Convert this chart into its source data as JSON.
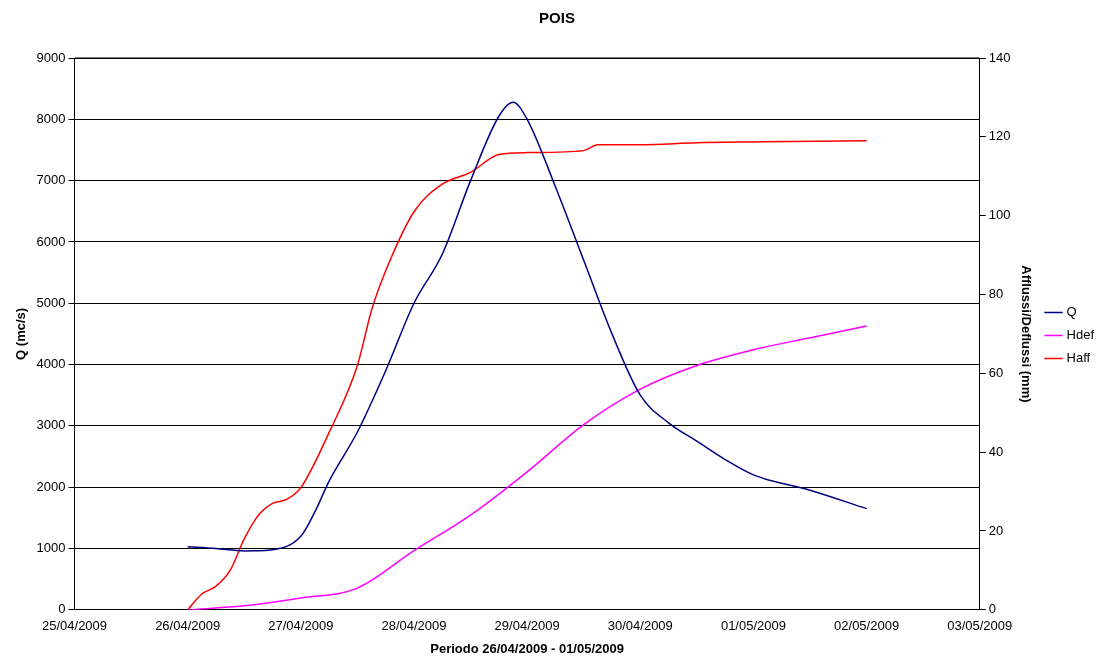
{
  "chart_data": {
    "type": "line",
    "title": "POIS",
    "xlabel": "Periodo 26/04/2009 - 01/05/2009",
    "ylabel": "Q (mc/s)",
    "y2label": "Afflussi/Deflussi (mm)",
    "xlim": [
      "2009-04-25",
      "2009-05-03"
    ],
    "xticks": [
      {
        "value": "2009-04-25",
        "label": "25/04/2009"
      },
      {
        "value": "2009-04-26",
        "label": "26/04/2009"
      },
      {
        "value": "2009-04-27",
        "label": "27/04/2009"
      },
      {
        "value": "2009-04-28",
        "label": "28/04/2009"
      },
      {
        "value": "2009-04-29",
        "label": "29/04/2009"
      },
      {
        "value": "2009-04-30",
        "label": "30/04/2009"
      },
      {
        "value": "2009-05-01",
        "label": "01/05/2009"
      },
      {
        "value": "2009-05-02",
        "label": "02/05/2009"
      },
      {
        "value": "2009-05-03",
        "label": "03/05/2009"
      }
    ],
    "ylim": [
      0,
      9000
    ],
    "yticks": [
      0,
      1000,
      2000,
      3000,
      4000,
      5000,
      6000,
      7000,
      8000,
      9000
    ],
    "y2lim": [
      0,
      140
    ],
    "y2ticks": [
      0,
      20,
      40,
      60,
      80,
      100,
      120,
      140
    ],
    "grid": "y",
    "legend": "right",
    "marker": "none",
    "line_style": "solid",
    "series": [
      {
        "name": "Q",
        "color": "#000080",
        "x": [
          "2009-04-26T00:00",
          "2009-04-26T06:00",
          "2009-04-26T12:00",
          "2009-04-26T18:00",
          "2009-04-27T00:00",
          "2009-04-27T03:00",
          "2009-04-27T06:00",
          "2009-04-27T12:00",
          "2009-04-27T18:00",
          "2009-04-28T00:00",
          "2009-04-28T06:00",
          "2009-04-28T12:00",
          "2009-04-28T18:00",
          "2009-04-28T21:00",
          "2009-04-29T00:00",
          "2009-04-29T06:00",
          "2009-04-29T12:00",
          "2009-04-29T18:00",
          "2009-04-30T00:00",
          "2009-04-30T06:00",
          "2009-04-30T12:00",
          "2009-04-30T18:00",
          "2009-05-01T00:00",
          "2009-05-01T12:00",
          "2009-05-02T00:00"
        ],
        "values": [
          1030,
          1000,
          960,
          980,
          1200,
          1600,
          2100,
          2900,
          3900,
          5000,
          5800,
          7000,
          8050,
          8280,
          8000,
          6900,
          5700,
          4500,
          3500,
          3050,
          2750,
          2450,
          2200,
          1950,
          1650
        ]
      },
      {
        "name": "Hdef",
        "color": "#ff00ff",
        "axis": "y2",
        "x": [
          "2009-04-26T00:00",
          "2009-04-26T12:00",
          "2009-04-27T00:00",
          "2009-04-27T12:00",
          "2009-04-28T00:00",
          "2009-04-28T12:00",
          "2009-04-29T00:00",
          "2009-04-29T12:00",
          "2009-04-30T00:00",
          "2009-04-30T12:00",
          "2009-05-01T00:00",
          "2009-05-01T12:00",
          "2009-05-02T00:00"
        ],
        "values": [
          0,
          1,
          3,
          5.5,
          15,
          24,
          35,
          47,
          56,
          62,
          66,
          69,
          72
        ]
      },
      {
        "name": "Haff",
        "color": "#ff0000",
        "axis": "y2",
        "x": [
          "2009-04-26T00:00",
          "2009-04-26T03:00",
          "2009-04-26T06:00",
          "2009-04-26T09:00",
          "2009-04-26T12:00",
          "2009-04-26T15:00",
          "2009-04-26T18:00",
          "2009-04-26T21:00",
          "2009-04-27T00:00",
          "2009-04-27T06:00",
          "2009-04-27T12:00",
          "2009-04-27T15:00",
          "2009-04-27T18:00",
          "2009-04-28T00:00",
          "2009-04-28T06:00",
          "2009-04-28T12:00",
          "2009-04-28T18:00",
          "2009-04-29T00:00",
          "2009-04-29T12:00",
          "2009-04-29T15:00",
          "2009-04-30T00:00",
          "2009-04-30T12:00",
          "2009-05-01T00:00",
          "2009-05-02T00:00"
        ],
        "values": [
          0,
          4,
          6,
          10,
          18,
          24,
          27,
          28,
          31,
          45,
          62,
          76,
          86,
          101,
          108,
          111,
          115.5,
          116,
          116.5,
          118,
          118,
          118.5,
          118.7,
          119
        ]
      }
    ]
  }
}
